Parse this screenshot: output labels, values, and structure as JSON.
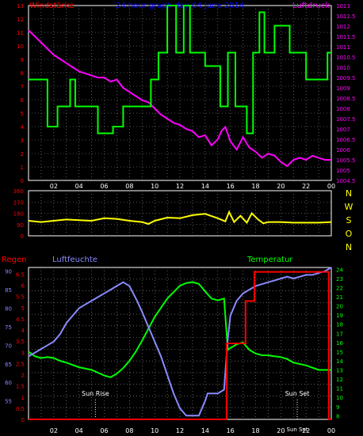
{
  "colors": {
    "background": "#000000",
    "frame": "#ffffff",
    "grid": "#9a9a9a",
    "wind_speed": "#00ff00",
    "pressure": "#ff00ff",
    "wind_dir": "#ffff00",
    "rain": "#ff0000",
    "humidity": "#8a8aff",
    "temperature": "#00ff00",
    "title": "#0000ff",
    "sun": "#ffffff"
  },
  "chart_data": [
    {
      "type": "line",
      "title": "24 hour graph day  04 June 2014",
      "ylabel_left": "Windstärke",
      "ylabel_right": "Luftdruck",
      "x_ticks": [
        "02",
        "04",
        "06",
        "08",
        "10",
        "12",
        "14",
        "16",
        "18",
        "20",
        "22",
        "00"
      ],
      "y_left_ticks": [
        "0",
        "1",
        "2",
        "3",
        "4",
        "5",
        "6",
        "7",
        "8",
        "9",
        "10",
        "11",
        "12",
        "13"
      ],
      "y_right_ticks": [
        "1004.5",
        "1005",
        "1005.5",
        "1006",
        "1006.5",
        "1007",
        "1007.5",
        "1008",
        "1008.5",
        "1009",
        "1009.5",
        "1010",
        "1010.5",
        "1011",
        "1011.5",
        "1012",
        "1012.5",
        "1013"
      ],
      "ylim_left": [
        0,
        13
      ],
      "ylim_right": [
        1004.5,
        1013
      ],
      "x_range_hours": [
        0,
        24
      ],
      "grid": true,
      "series": [
        {
          "name": "Windstärke",
          "axis": "left",
          "step": true,
          "x": [
            0,
            1.5,
            1.5,
            2.3,
            2.3,
            3.3,
            3.3,
            3.7,
            3.7,
            4.5,
            4.5,
            5.5,
            5.5,
            6.7,
            6.7,
            7.5,
            7.5,
            9.7,
            9.7,
            10.3,
            10.3,
            11.0,
            11.0,
            11.7,
            11.7,
            12.3,
            12.3,
            12.8,
            12.8,
            14.0,
            14.0,
            15.2,
            15.2,
            15.8,
            15.8,
            16.4,
            16.4,
            17.3,
            17.3,
            17.8,
            17.8,
            18.3,
            18.3,
            18.7,
            18.7,
            19.5,
            19.5,
            20.7,
            20.7,
            22.0,
            22.0,
            23.7,
            23.7,
            24
          ],
          "y": [
            7.5,
            7.5,
            4,
            4,
            5.5,
            5.5,
            7.5,
            7.5,
            5.5,
            5.5,
            5.5,
            5.5,
            3.5,
            3.5,
            4,
            4,
            5.5,
            5.5,
            7.5,
            7.5,
            9.5,
            9.5,
            13,
            13,
            9.5,
            9.5,
            13,
            13,
            9.5,
            9.5,
            8.5,
            8.5,
            5.5,
            5.5,
            9.5,
            9.5,
            5.5,
            5.5,
            3.5,
            3.5,
            9.5,
            9.5,
            12.5,
            12.5,
            9.5,
            9.5,
            11.5,
            11.5,
            9.5,
            9.5,
            7.5,
            7.5,
            9.5,
            9.5
          ]
        },
        {
          "name": "Luftdruck",
          "axis": "right",
          "x": [
            0,
            0.5,
            1,
            1.5,
            2,
            2.5,
            3,
            3.5,
            4,
            4.5,
            5,
            5.5,
            6,
            6.5,
            7,
            7.5,
            8,
            8.5,
            9,
            9.5,
            10,
            10.5,
            11,
            11.5,
            12,
            12.5,
            13,
            13.5,
            14,
            14.5,
            15,
            15.3,
            15.6,
            16,
            16.5,
            17,
            17.5,
            18,
            18.5,
            19,
            19.5,
            20,
            20.5,
            21,
            21.5,
            22,
            22.5,
            23,
            23.5,
            24
          ],
          "y": [
            1011.8,
            1011.5,
            1011.2,
            1010.9,
            1010.6,
            1010.4,
            1010.2,
            1010.0,
            1009.8,
            1009.7,
            1009.6,
            1009.5,
            1009.5,
            1009.3,
            1009.4,
            1009.0,
            1008.8,
            1008.6,
            1008.4,
            1008.3,
            1008.0,
            1007.7,
            1007.5,
            1007.3,
            1007.2,
            1007.0,
            1006.9,
            1006.6,
            1006.7,
            1006.2,
            1006.5,
            1006.9,
            1007.1,
            1006.4,
            1006.0,
            1006.6,
            1006.1,
            1005.9,
            1005.6,
            1005.8,
            1005.7,
            1005.4,
            1005.2,
            1005.5,
            1005.6,
            1005.5,
            1005.7,
            1005.6,
            1005.5,
            1005.5
          ]
        }
      ]
    },
    {
      "type": "line",
      "title": "",
      "y_ticks": [
        "0",
        "90",
        "180",
        "270",
        "360"
      ],
      "right_labels": [
        "N",
        "W",
        "S",
        "O",
        "N"
      ],
      "ylim": [
        0,
        360
      ],
      "x_range_hours": [
        0,
        24
      ],
      "grid": true,
      "series": [
        {
          "axis": "left",
          "x": [
            0,
            1,
            2,
            3,
            4,
            5,
            6,
            7,
            8,
            9,
            9.5,
            10,
            11,
            12,
            13,
            14,
            15,
            15.6,
            15.9,
            16.3,
            16.8,
            17.3,
            17.7,
            18.2,
            18.6,
            19,
            20,
            21,
            22,
            23,
            24
          ],
          "y": [
            120,
            110,
            120,
            130,
            125,
            120,
            140,
            135,
            120,
            110,
            95,
            120,
            145,
            140,
            165,
            175,
            140,
            115,
            190,
            110,
            160,
            105,
            180,
            130,
            100,
            110,
            110,
            105,
            105,
            105,
            110
          ]
        }
      ]
    },
    {
      "type": "line",
      "title": "",
      "ylabel_rain": "Regen",
      "ylabel_humidity": "Luftfeuchte",
      "ylabel_temperature": "Temperatur",
      "rain_ticks": [
        "0",
        "0.5",
        "1",
        "1.5",
        "2",
        "2.5",
        "3",
        "3.5",
        "4",
        "4.5",
        "5",
        "5.5",
        "6",
        "6.5"
      ],
      "humidity_ticks": [
        "55",
        "60",
        "65",
        "70",
        "75",
        "80",
        "85",
        "90"
      ],
      "temperature_ticks": [
        "8",
        "9",
        "10",
        "11",
        "12",
        "13",
        "14",
        "15",
        "16",
        "17",
        "18",
        "19",
        "20",
        "21",
        "22",
        "23",
        "24"
      ],
      "rain_lim": [
        0,
        6.8
      ],
      "humidity_lim": [
        50,
        91
      ],
      "temperature_lim": [
        7.6,
        24.2
      ],
      "x_ticks": [
        "02",
        "04",
        "06",
        "08",
        "10",
        "12",
        "14",
        "16",
        "18",
        "20",
        "22",
        "00"
      ],
      "x_range_hours": [
        0,
        24
      ],
      "grid": true,
      "sun_rise_label": "Sun Rise",
      "sun_set_label": "Sun Set",
      "sun_rise_hour": 5.3,
      "sun_set_hour": 21.3,
      "series": [
        {
          "name": "Regen",
          "axis": "rain",
          "step": true,
          "x": [
            0,
            15.7,
            15.7,
            17.2,
            17.2,
            17.9,
            17.9,
            23.8,
            23.8,
            24
          ],
          "y": [
            0,
            0,
            3.4,
            3.4,
            5.3,
            5.3,
            6.6,
            6.6,
            0,
            0
          ]
        },
        {
          "name": "Luftfeuchte",
          "axis": "humidity",
          "x": [
            0,
            0.5,
            1,
            1.5,
            2,
            2.5,
            3,
            3.5,
            4,
            4.5,
            5,
            5.5,
            6,
            6.5,
            7,
            7.5,
            8,
            8.3,
            8.6,
            9,
            9.5,
            10,
            10.5,
            11,
            11.5,
            12,
            12.5,
            13,
            13.5,
            14,
            14.2,
            14.5,
            15,
            15.5,
            15.8,
            16,
            16.5,
            17,
            17.5,
            18,
            18.5,
            19,
            19.5,
            20,
            20.5,
            21,
            21.5,
            22,
            22.5,
            23,
            23.5,
            24
          ],
          "y": [
            67,
            68,
            69,
            70,
            71,
            73,
            76,
            78,
            80,
            81,
            82,
            83,
            84,
            85,
            86,
            87,
            86,
            84,
            82,
            79,
            75,
            71,
            67,
            62,
            57,
            53,
            51,
            51,
            51,
            55,
            57,
            57,
            57,
            58,
            72,
            78,
            82,
            84,
            85,
            86,
            86.5,
            87,
            87.5,
            88,
            88.5,
            88,
            88.5,
            89,
            89,
            89.5,
            90,
            91
          ]
        },
        {
          "name": "Temperatur",
          "axis": "temperature",
          "x": [
            0,
            0.5,
            1,
            1.5,
            2,
            2.5,
            3,
            4,
            5,
            6,
            6.5,
            7,
            7.5,
            8,
            8.5,
            9,
            9.5,
            10,
            10.5,
            11,
            11.5,
            12,
            12.5,
            13,
            13.5,
            14,
            14.5,
            15,
            15.5,
            15.8,
            16,
            16.5,
            17,
            17.5,
            18,
            18.5,
            19,
            19.5,
            20,
            20.5,
            21,
            22,
            23,
            24
          ],
          "y": [
            15,
            14.5,
            14.3,
            14.4,
            14.3,
            14.0,
            13.8,
            13.3,
            13.0,
            12.4,
            12.2,
            12.6,
            13.2,
            14.0,
            15.0,
            16.2,
            17.5,
            18.8,
            19.8,
            20.8,
            21.5,
            22.2,
            22.5,
            22.6,
            22.4,
            21.6,
            20.8,
            20.6,
            20.8,
            15.2,
            15.4,
            15.8,
            16.0,
            15.2,
            14.8,
            14.6,
            14.6,
            14.5,
            14.4,
            14.2,
            13.8,
            13.5,
            13.0,
            13.0
          ]
        }
      ]
    }
  ]
}
